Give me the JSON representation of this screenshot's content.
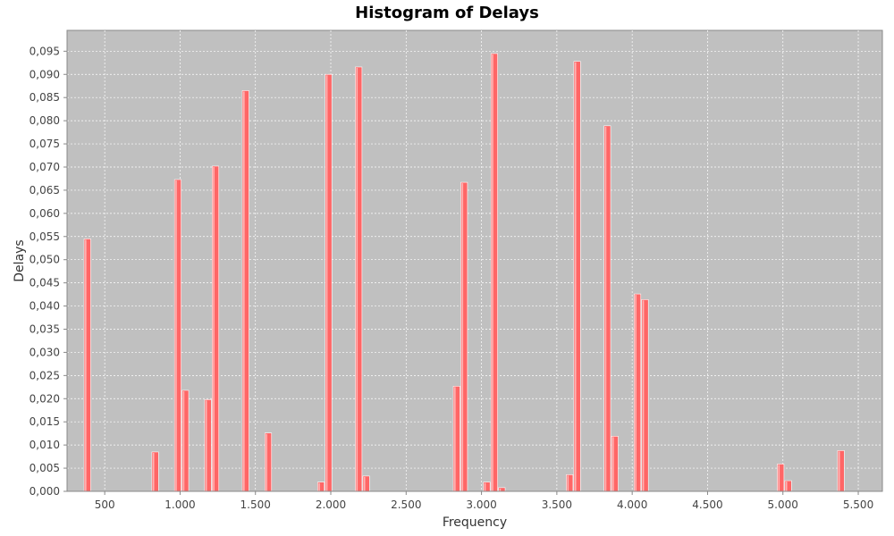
{
  "chart_data": {
    "type": "bar",
    "title": "Histogram of Delays",
    "xlabel": "Frequency",
    "ylabel": "Delays",
    "xlim": [
      250,
      5660
    ],
    "ylim": [
      0,
      0.0995
    ],
    "bin_width": 50,
    "grid": true,
    "x_ticks": [
      500,
      1000,
      1500,
      2000,
      2500,
      3000,
      3500,
      4000,
      4500,
      5000,
      5500
    ],
    "x_tick_labels": [
      "500",
      "1.000",
      "1.500",
      "2.000",
      "2.500",
      "3.000",
      "3.500",
      "4.000",
      "4.500",
      "5.000",
      "5.500"
    ],
    "y_ticks": [
      0,
      0.005,
      0.01,
      0.015,
      0.02,
      0.025,
      0.03,
      0.035,
      0.04,
      0.045,
      0.05,
      0.055,
      0.06,
      0.065,
      0.07,
      0.075,
      0.08,
      0.085,
      0.09,
      0.095
    ],
    "y_tick_labels": [
      "0,000",
      "0,005",
      "0,010",
      "0,015",
      "0,020",
      "0,025",
      "0,030",
      "0,035",
      "0,040",
      "0,045",
      "0,050",
      "0,055",
      "0,060",
      "0,065",
      "0,070",
      "0,075",
      "0,080",
      "0,085",
      "0,090",
      "0,095"
    ],
    "series": [
      {
        "color": "#ff6666",
        "x": [
          385,
          835,
          985,
          1035,
          1185,
          1235,
          1435,
          1585,
          1935,
          1985,
          2185,
          2235,
          2835,
          2885,
          3035,
          3085,
          3135,
          3585,
          3635,
          3835,
          3885,
          4035,
          4085,
          4985,
          5035,
          5385
        ],
        "values": [
          0.0545,
          0.0085,
          0.0673,
          0.0218,
          0.0198,
          0.0702,
          0.0865,
          0.0126,
          0.002,
          0.09,
          0.0916,
          0.0033,
          0.0227,
          0.0667,
          0.002,
          0.0945,
          0.0008,
          0.0036,
          0.0928,
          0.0789,
          0.0119,
          0.0426,
          0.0414,
          0.0059,
          0.0023,
          0.0088
        ]
      }
    ]
  },
  "colors": {
    "plot_background": "#c0c0c0",
    "gridline": "#ffffff",
    "bar": "#ff6666",
    "bar_highlight": "#ffb3b3"
  }
}
